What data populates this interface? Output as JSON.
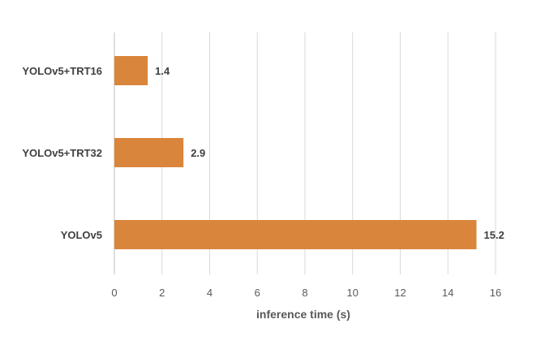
{
  "chart_data": {
    "type": "bar",
    "orientation": "horizontal",
    "categories": [
      "YOLOv5+TRT16",
      "YOLOv5+TRT32",
      "YOLOv5"
    ],
    "values": [
      1.4,
      2.9,
      15.2
    ],
    "data_labels": [
      "1.4",
      "2.9",
      "15.2"
    ],
    "xlabel": "inference time (s)",
    "ylabel": "",
    "xlim": [
      0,
      16
    ],
    "x_ticks": [
      0,
      2,
      4,
      6,
      8,
      10,
      12,
      14,
      16
    ],
    "x_tick_labels": [
      "0",
      "2",
      "4",
      "6",
      "8",
      "10",
      "12",
      "14",
      "16"
    ],
    "grid": "vertical",
    "legend": "none",
    "colors": {
      "bar": "#d9853b",
      "grid": "#d9d9d9",
      "axis": "#bfbfbf"
    }
  }
}
